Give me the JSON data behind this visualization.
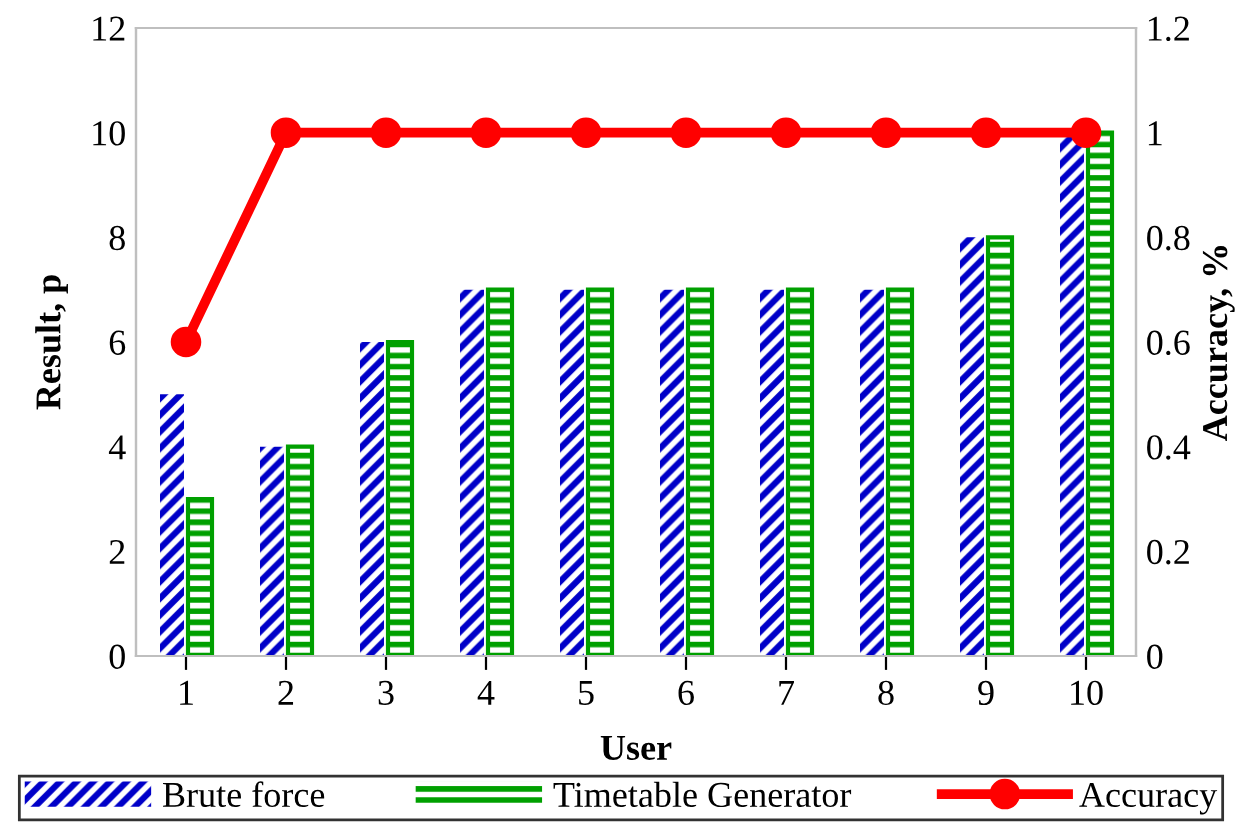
{
  "chart_data": {
    "type": "bar",
    "xlabel": "User",
    "ylabel": "Result, p",
    "y2label": "Accuracy, %",
    "categories": [
      "1",
      "2",
      "3",
      "4",
      "5",
      "6",
      "7",
      "8",
      "9",
      "10"
    ],
    "series": [
      {
        "name": "Brute force",
        "color": "#0000c8",
        "values": [
          5,
          4,
          6,
          7,
          7,
          7,
          7,
          7,
          8,
          10
        ]
      },
      {
        "name": "Timetable Generator",
        "color": "#00a000",
        "values": [
          3,
          4,
          6,
          7,
          7,
          7,
          7,
          7,
          8,
          10
        ]
      },
      {
        "name": "Accuracy",
        "type": "line",
        "axis": "y2",
        "color": "#ff0000",
        "marker": "circle",
        "line_style": "solid",
        "values": [
          0.6,
          1,
          1,
          1,
          1,
          1,
          1,
          1,
          1,
          1
        ]
      }
    ],
    "ylim": [
      0,
      12
    ],
    "yticks": [
      0,
      2,
      4,
      6,
      8,
      10,
      12
    ],
    "y2lim": [
      0,
      1.2
    ],
    "y2ticks": [
      0,
      0.2,
      0.4,
      0.6,
      0.8,
      1,
      1.2
    ],
    "grid": false,
    "legend": "bottom"
  }
}
